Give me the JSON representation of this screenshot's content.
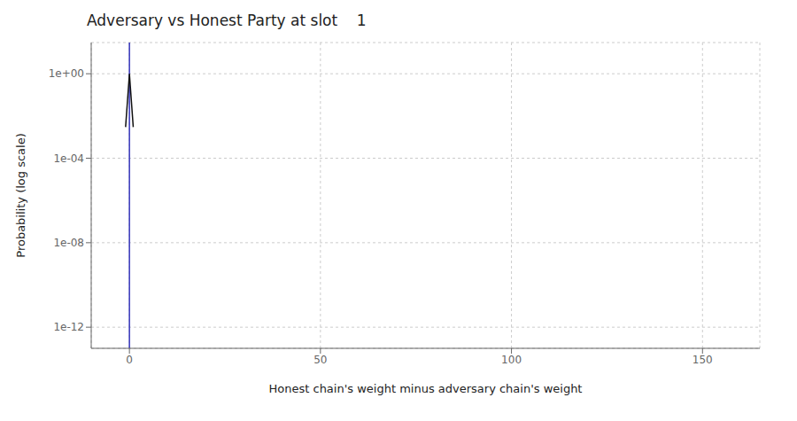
{
  "chart_data": {
    "type": "line",
    "title": "Adversary vs Honest Party at slot    1",
    "xlabel": "Honest chain's weight minus adversary chain's weight",
    "ylabel": "Probability (log scale)",
    "x": [
      -1,
      0,
      1
    ],
    "series": [
      {
        "color": "#111111",
        "values": [
          0.003,
          1.0,
          0.003
        ]
      }
    ],
    "xlim": [
      -10,
      165
    ],
    "ylim": [
      1e-13,
      30
    ],
    "xticks": [
      0,
      50,
      100,
      150
    ],
    "yticks": [
      {
        "value": 1,
        "label": "1e+00"
      },
      {
        "value": 0.0001,
        "label": "1e-04"
      },
      {
        "value": 1e-08,
        "label": "1e-08"
      },
      {
        "value": 1e-12,
        "label": "1e-12"
      }
    ],
    "log": "y",
    "grid": true,
    "reference_lines": [
      {
        "x": 0,
        "color": "#3333BB"
      }
    ]
  }
}
